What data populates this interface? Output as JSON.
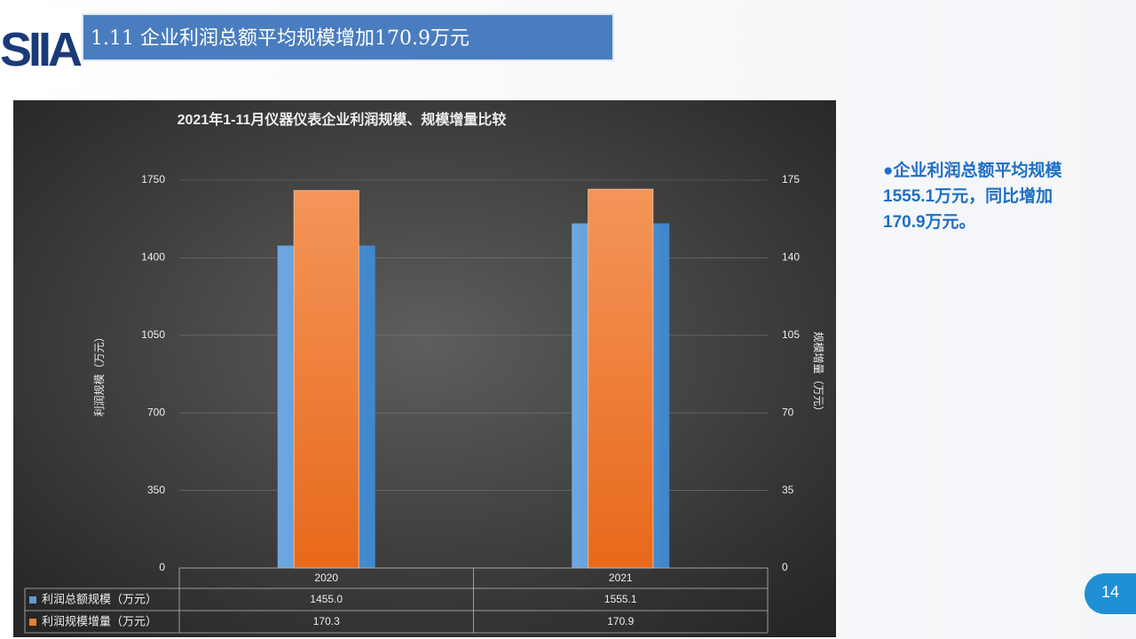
{
  "header": {
    "logo": "SIIA",
    "title": "1.11 企业利润总额平均规模增加170.9万元"
  },
  "bullet": "●企业利润总额平均规模1555.1万元，同比增加170.9万元。",
  "page_number": "14",
  "chart_data": {
    "type": "bar",
    "title": "2021年1-11月仪器仪表企业利润规模、规模增量比较",
    "categories": [
      "2020",
      "2021"
    ],
    "series": [
      {
        "name": "利润总额规模（万元）",
        "color": "#5b9bd5",
        "values": [
          1455.0,
          1555.1
        ],
        "value_labels": [
          "1455.0",
          "1555.1"
        ]
      },
      {
        "name": "利润规模增量（万元）",
        "color": "#ed7d31",
        "values": [
          170.3,
          170.9
        ],
        "axis": "y2"
      }
    ],
    "ylabel": "利润规模（万元）",
    "y2label": "规模增量（万元）",
    "ylim": [
      0,
      1750
    ],
    "yticks": [
      0,
      350,
      700,
      1050,
      1400,
      1750
    ],
    "y2lim": [
      0,
      175
    ],
    "y2ticks": [
      0,
      35,
      70,
      105,
      140,
      175
    ],
    "grid": true
  }
}
